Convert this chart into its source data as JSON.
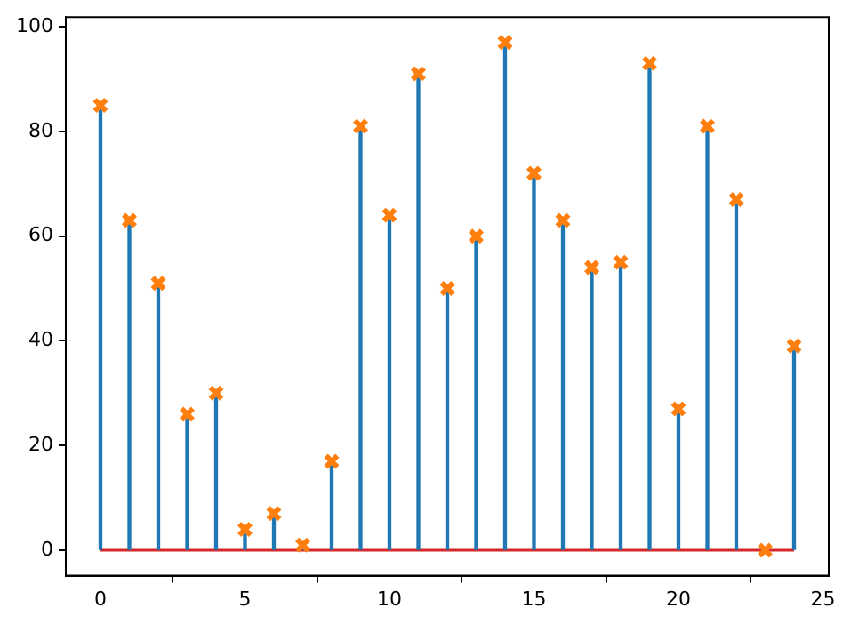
{
  "chart_data": {
    "type": "lollipop",
    "x": [
      0,
      1,
      2,
      3,
      4,
      5,
      6,
      7,
      8,
      9,
      10,
      11,
      12,
      13,
      14,
      15,
      16,
      17,
      18,
      19,
      20,
      21,
      22,
      23,
      24
    ],
    "series": [
      {
        "color": "#ff7f0e",
        "values": [
          85,
          63,
          51,
          26,
          30,
          4,
          7,
          1,
          17,
          81,
          64,
          91,
          50,
          60,
          97,
          72,
          63,
          54,
          55,
          93,
          27,
          81,
          67,
          0,
          39
        ]
      }
    ],
    "marker": "cross",
    "ref_lines": [
      {
        "axis": "y",
        "value": 0,
        "color": "#d62728"
      }
    ],
    "xlim": [
      -1.2,
      25.2
    ],
    "xticks": [
      0,
      5,
      10,
      15,
      20,
      25
    ],
    "ylim": [
      -4.85,
      101.85
    ],
    "yticks": [
      0,
      20,
      40,
      60,
      80,
      100
    ],
    "grid": false,
    "legend": false
  }
}
